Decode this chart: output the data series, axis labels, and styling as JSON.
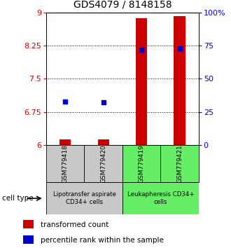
{
  "title": "GDS4079 / 8148158",
  "samples": [
    "GSM779418",
    "GSM779420",
    "GSM779419",
    "GSM779421"
  ],
  "transformed_count": [
    6.13,
    6.13,
    8.87,
    8.92
  ],
  "percentile_rank_pct": [
    33,
    32,
    72,
    73
  ],
  "ylim_left": [
    6,
    9
  ],
  "ylim_right": [
    0,
    100
  ],
  "yticks_left": [
    6,
    6.75,
    7.5,
    8.25,
    9
  ],
  "ytick_labels_left": [
    "6",
    "6.75",
    "7.5",
    "8.25",
    "9"
  ],
  "yticks_right_pct": [
    0,
    25,
    50,
    75,
    100
  ],
  "ytick_labels_right": [
    "0",
    "25",
    "50",
    "75",
    "100%"
  ],
  "groups": [
    {
      "label": "Lipotransfer aspirate\nCD34+ cells",
      "color": "#c8c8c8"
    },
    {
      "label": "Leukapheresis CD34+\ncells",
      "color": "#66ee66"
    }
  ],
  "box_colors": [
    "#c8c8c8",
    "#c8c8c8",
    "#66ee66",
    "#66ee66"
  ],
  "bar_color": "#cc0000",
  "dot_color": "#0000cc",
  "bar_width": 0.3,
  "cell_type_label": "cell type",
  "legend_bar_label": "transformed count",
  "legend_dot_label": "percentile rank within the sample",
  "title_fontsize": 10,
  "tick_fontsize": 8,
  "label_fontsize": 7.5
}
